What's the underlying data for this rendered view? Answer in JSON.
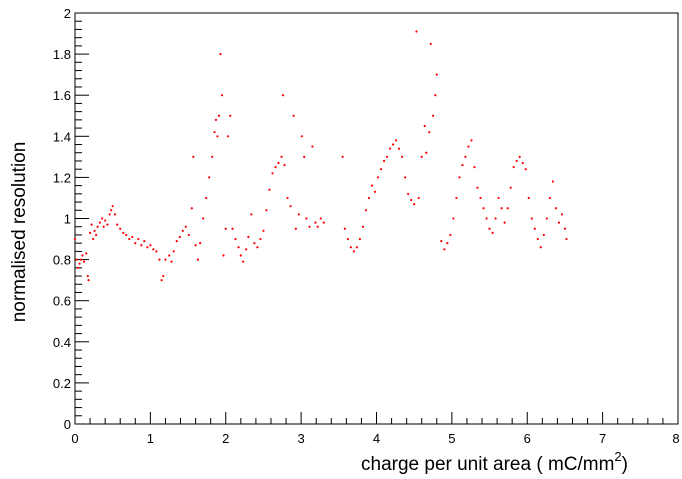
{
  "chart_data": {
    "type": "scatter",
    "title": "",
    "xlabel": "charge per unit area ( mC/mm",
    "xlabel_superscript": "2",
    "xlabel_close": ")",
    "ylabel": "normalised resolution",
    "xlim": [
      0,
      8
    ],
    "ylim": [
      0,
      2
    ],
    "xticks": [
      0,
      1,
      2,
      3,
      4,
      5,
      6,
      7,
      8
    ],
    "xtick_labels": [
      "0",
      "1",
      "2",
      "3",
      "4",
      "5",
      "6",
      "7",
      "8"
    ],
    "yticks": [
      0,
      0.2,
      0.4,
      0.6,
      0.8,
      1,
      1.2,
      1.4,
      1.6,
      1.8,
      2
    ],
    "ytick_labels": [
      "0",
      "0.2",
      "0.4",
      "0.6",
      "0.8",
      "1",
      "1.2",
      "1.4",
      "1.6",
      "1.8",
      "2"
    ],
    "grid": false,
    "marker_color": "#ff0000",
    "series": [
      {
        "name": "",
        "color": "#ff0000",
        "points": [
          [
            0.0,
            0.9
          ],
          [
            0.02,
            0.8
          ],
          [
            0.04,
            0.76
          ],
          [
            0.06,
            0.78
          ],
          [
            0.08,
            0.8
          ],
          [
            0.1,
            0.82
          ],
          [
            0.12,
            0.79
          ],
          [
            0.15,
            0.83
          ],
          [
            0.17,
            0.72
          ],
          [
            0.18,
            0.7
          ],
          [
            0.2,
            0.93
          ],
          [
            0.22,
            0.97
          ],
          [
            0.24,
            0.9
          ],
          [
            0.26,
            0.94
          ],
          [
            0.28,
            0.92
          ],
          [
            0.3,
            0.96
          ],
          [
            0.33,
            0.98
          ],
          [
            0.36,
            1.0
          ],
          [
            0.38,
            0.96
          ],
          [
            0.4,
            0.99
          ],
          [
            0.43,
            0.97
          ],
          [
            0.46,
            1.02
          ],
          [
            0.48,
            1.04
          ],
          [
            0.5,
            1.06
          ],
          [
            0.53,
            1.02
          ],
          [
            0.56,
            0.97
          ],
          [
            0.6,
            0.95
          ],
          [
            0.64,
            0.93
          ],
          [
            0.68,
            0.92
          ],
          [
            0.72,
            0.9
          ],
          [
            0.76,
            0.91
          ],
          [
            0.8,
            0.88
          ],
          [
            0.84,
            0.9
          ],
          [
            0.88,
            0.87
          ],
          [
            0.92,
            0.89
          ],
          [
            0.96,
            0.86
          ],
          [
            1.0,
            0.87
          ],
          [
            1.04,
            0.85
          ],
          [
            1.08,
            0.84
          ],
          [
            1.12,
            0.8
          ],
          [
            1.15,
            0.7
          ],
          [
            1.17,
            0.72
          ],
          [
            1.2,
            0.8
          ],
          [
            1.25,
            0.82
          ],
          [
            1.28,
            0.79
          ],
          [
            1.31,
            0.84
          ],
          [
            1.35,
            0.89
          ],
          [
            1.39,
            0.91
          ],
          [
            1.43,
            0.94
          ],
          [
            1.47,
            0.96
          ],
          [
            1.51,
            0.92
          ],
          [
            1.55,
            1.05
          ],
          [
            1.57,
            1.3
          ],
          [
            1.6,
            0.87
          ],
          [
            1.63,
            0.8
          ],
          [
            1.66,
            0.88
          ],
          [
            1.7,
            1.0
          ],
          [
            1.74,
            1.1
          ],
          [
            1.78,
            1.2
          ],
          [
            1.82,
            1.3
          ],
          [
            1.85,
            1.42
          ],
          [
            1.87,
            1.48
          ],
          [
            1.89,
            1.4
          ],
          [
            1.91,
            1.5
          ],
          [
            1.93,
            1.8
          ],
          [
            1.95,
            1.6
          ],
          [
            1.97,
            0.82
          ],
          [
            2.0,
            0.95
          ],
          [
            2.03,
            1.4
          ],
          [
            2.06,
            1.5
          ],
          [
            2.09,
            0.95
          ],
          [
            2.13,
            0.9
          ],
          [
            2.17,
            0.86
          ],
          [
            2.2,
            0.82
          ],
          [
            2.23,
            0.79
          ],
          [
            2.27,
            0.85
          ],
          [
            2.3,
            0.91
          ],
          [
            2.34,
            1.02
          ],
          [
            2.38,
            0.88
          ],
          [
            2.42,
            0.86
          ],
          [
            2.46,
            0.9
          ],
          [
            2.5,
            0.94
          ],
          [
            2.54,
            1.04
          ],
          [
            2.58,
            1.14
          ],
          [
            2.62,
            1.22
          ],
          [
            2.66,
            1.25
          ],
          [
            2.7,
            1.27
          ],
          [
            2.74,
            1.3
          ],
          [
            2.76,
            1.6
          ],
          [
            2.78,
            1.26
          ],
          [
            2.82,
            1.1
          ],
          [
            2.86,
            1.06
          ],
          [
            2.9,
            1.5
          ],
          [
            2.93,
            0.95
          ],
          [
            2.97,
            1.02
          ],
          [
            3.01,
            1.4
          ],
          [
            3.04,
            1.3
          ],
          [
            3.07,
            1.0
          ],
          [
            3.11,
            0.96
          ],
          [
            3.15,
            1.35
          ],
          [
            3.19,
            0.98
          ],
          [
            3.22,
            0.96
          ],
          [
            3.26,
            1.0
          ],
          [
            3.3,
            0.98
          ],
          [
            3.55,
            1.3
          ],
          [
            3.58,
            0.95
          ],
          [
            3.62,
            0.9
          ],
          [
            3.66,
            0.86
          ],
          [
            3.7,
            0.84
          ],
          [
            3.74,
            0.86
          ],
          [
            3.78,
            0.9
          ],
          [
            3.82,
            0.96
          ],
          [
            3.86,
            1.04
          ],
          [
            3.9,
            1.1
          ],
          [
            3.94,
            1.16
          ],
          [
            3.98,
            1.13
          ],
          [
            4.02,
            1.2
          ],
          [
            4.06,
            1.24
          ],
          [
            4.1,
            1.28
          ],
          [
            4.14,
            1.3
          ],
          [
            4.18,
            1.34
          ],
          [
            4.22,
            1.36
          ],
          [
            4.26,
            1.38
          ],
          [
            4.3,
            1.34
          ],
          [
            4.34,
            1.3
          ],
          [
            4.38,
            1.2
          ],
          [
            4.42,
            1.12
          ],
          [
            4.46,
            1.09
          ],
          [
            4.5,
            1.07
          ],
          [
            4.53,
            1.91
          ],
          [
            4.56,
            1.1
          ],
          [
            4.6,
            1.3
          ],
          [
            4.64,
            1.45
          ],
          [
            4.66,
            1.32
          ],
          [
            4.7,
            1.42
          ],
          [
            4.72,
            1.85
          ],
          [
            4.75,
            1.5
          ],
          [
            4.78,
            1.6
          ],
          [
            4.8,
            1.7
          ],
          [
            4.86,
            0.89
          ],
          [
            4.9,
            0.85
          ],
          [
            4.94,
            0.88
          ],
          [
            4.98,
            0.92
          ],
          [
            5.02,
            1.0
          ],
          [
            5.06,
            1.1
          ],
          [
            5.1,
            1.2
          ],
          [
            5.14,
            1.26
          ],
          [
            5.18,
            1.3
          ],
          [
            5.22,
            1.35
          ],
          [
            5.26,
            1.38
          ],
          [
            5.3,
            1.25
          ],
          [
            5.34,
            1.15
          ],
          [
            5.38,
            1.1
          ],
          [
            5.42,
            1.05
          ],
          [
            5.46,
            1.0
          ],
          [
            5.5,
            0.95
          ],
          [
            5.54,
            0.93
          ],
          [
            5.58,
            1.0
          ],
          [
            5.62,
            1.1
          ],
          [
            5.66,
            1.05
          ],
          [
            5.7,
            0.98
          ],
          [
            5.74,
            1.05
          ],
          [
            5.78,
            1.15
          ],
          [
            5.82,
            1.25
          ],
          [
            5.86,
            1.28
          ],
          [
            5.9,
            1.3
          ],
          [
            5.94,
            1.27
          ],
          [
            5.98,
            1.24
          ],
          [
            6.02,
            1.1
          ],
          [
            6.06,
            1.0
          ],
          [
            6.1,
            0.95
          ],
          [
            6.14,
            0.9
          ],
          [
            6.18,
            0.86
          ],
          [
            6.22,
            0.92
          ],
          [
            6.26,
            1.0
          ],
          [
            6.3,
            1.1
          ],
          [
            6.34,
            1.18
          ],
          [
            6.38,
            1.05
          ],
          [
            6.42,
            0.98
          ],
          [
            6.46,
            1.02
          ],
          [
            6.5,
            0.95
          ],
          [
            6.52,
            0.9
          ]
        ]
      }
    ]
  }
}
